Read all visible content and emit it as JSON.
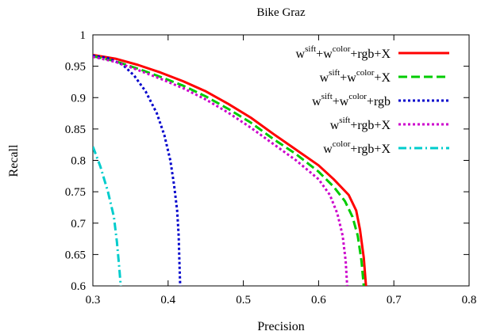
{
  "chart_data": {
    "type": "line",
    "title": "Bike Graz",
    "xlabel": "Precision",
    "ylabel": "Recall",
    "xlim": [
      0.3,
      0.8
    ],
    "ylim": [
      0.6,
      1.0
    ],
    "xticks": [
      "0.3",
      "0.4",
      "0.5",
      "0.6",
      "0.7",
      "0.8"
    ],
    "yticks": [
      "0.6",
      "0.65",
      "0.7",
      "0.75",
      "0.8",
      "0.85",
      "0.9",
      "0.95",
      "1"
    ],
    "grid": false,
    "legend_position": "top-right",
    "series": [
      {
        "name": "w^sift+w^color+rgb+X",
        "legend": {
          "w1": "w",
          "s1": "sift",
          "mid": "+w",
          "s2": "color",
          "tail": "+rgb+X"
        },
        "color": "#ff0000",
        "dash": "solid",
        "points": [
          [
            0.3,
            0.968
          ],
          [
            0.33,
            0.962
          ],
          [
            0.36,
            0.952
          ],
          [
            0.39,
            0.94
          ],
          [
            0.42,
            0.926
          ],
          [
            0.45,
            0.91
          ],
          [
            0.48,
            0.89
          ],
          [
            0.51,
            0.868
          ],
          [
            0.54,
            0.842
          ],
          [
            0.57,
            0.817
          ],
          [
            0.6,
            0.792
          ],
          [
            0.62,
            0.77
          ],
          [
            0.64,
            0.745
          ],
          [
            0.65,
            0.72
          ],
          [
            0.655,
            0.69
          ],
          [
            0.66,
            0.645
          ],
          [
            0.663,
            0.6
          ]
        ]
      },
      {
        "name": "w^sift+w^color+X",
        "legend": {
          "w1": "w",
          "s1": "sift",
          "mid": "+w",
          "s2": "color",
          "tail": "+X"
        },
        "color": "#00cc00",
        "dash": "dashed",
        "points": [
          [
            0.3,
            0.966
          ],
          [
            0.33,
            0.958
          ],
          [
            0.36,
            0.946
          ],
          [
            0.39,
            0.933
          ],
          [
            0.42,
            0.919
          ],
          [
            0.45,
            0.902
          ],
          [
            0.48,
            0.882
          ],
          [
            0.51,
            0.86
          ],
          [
            0.54,
            0.834
          ],
          [
            0.57,
            0.81
          ],
          [
            0.6,
            0.782
          ],
          [
            0.62,
            0.758
          ],
          [
            0.635,
            0.735
          ],
          [
            0.645,
            0.71
          ],
          [
            0.652,
            0.68
          ],
          [
            0.657,
            0.64
          ],
          [
            0.66,
            0.6
          ]
        ]
      },
      {
        "name": "w^sift+w^color+rgb",
        "legend": {
          "w1": "w",
          "s1": "sift",
          "mid": "+w",
          "s2": "color",
          "tail": "+rgb"
        },
        "color": "#0000cc",
        "dash": "dotted",
        "points": [
          [
            0.3,
            0.967
          ],
          [
            0.32,
            0.963
          ],
          [
            0.34,
            0.952
          ],
          [
            0.355,
            0.935
          ],
          [
            0.37,
            0.91
          ],
          [
            0.385,
            0.875
          ],
          [
            0.395,
            0.84
          ],
          [
            0.403,
            0.8
          ],
          [
            0.408,
            0.76
          ],
          [
            0.412,
            0.72
          ],
          [
            0.414,
            0.68
          ],
          [
            0.415,
            0.64
          ],
          [
            0.416,
            0.6
          ]
        ]
      },
      {
        "name": "w^sift+rgb+X",
        "legend": {
          "w1": "w",
          "s1": "sift",
          "mid": "",
          "s2": "",
          "tail": "+rgb+X"
        },
        "color": "#cc00cc",
        "dash": "dotted",
        "points": [
          [
            0.3,
            0.965
          ],
          [
            0.33,
            0.957
          ],
          [
            0.36,
            0.944
          ],
          [
            0.39,
            0.93
          ],
          [
            0.42,
            0.915
          ],
          [
            0.45,
            0.897
          ],
          [
            0.48,
            0.876
          ],
          [
            0.51,
            0.852
          ],
          [
            0.54,
            0.826
          ],
          [
            0.57,
            0.8
          ],
          [
            0.6,
            0.77
          ],
          [
            0.615,
            0.745
          ],
          [
            0.625,
            0.715
          ],
          [
            0.632,
            0.68
          ],
          [
            0.636,
            0.64
          ],
          [
            0.638,
            0.6
          ]
        ]
      },
      {
        "name": "w^color+rgb+X",
        "legend": {
          "w1": "w",
          "s1": "color",
          "mid": "",
          "s2": "",
          "tail": "+rgb+X"
        },
        "color": "#00cccc",
        "dash": "dashdot",
        "points": [
          [
            0.3,
            0.822
          ],
          [
            0.31,
            0.79
          ],
          [
            0.32,
            0.75
          ],
          [
            0.328,
            0.71
          ],
          [
            0.332,
            0.67
          ],
          [
            0.335,
            0.63
          ],
          [
            0.337,
            0.6
          ]
        ]
      }
    ]
  }
}
